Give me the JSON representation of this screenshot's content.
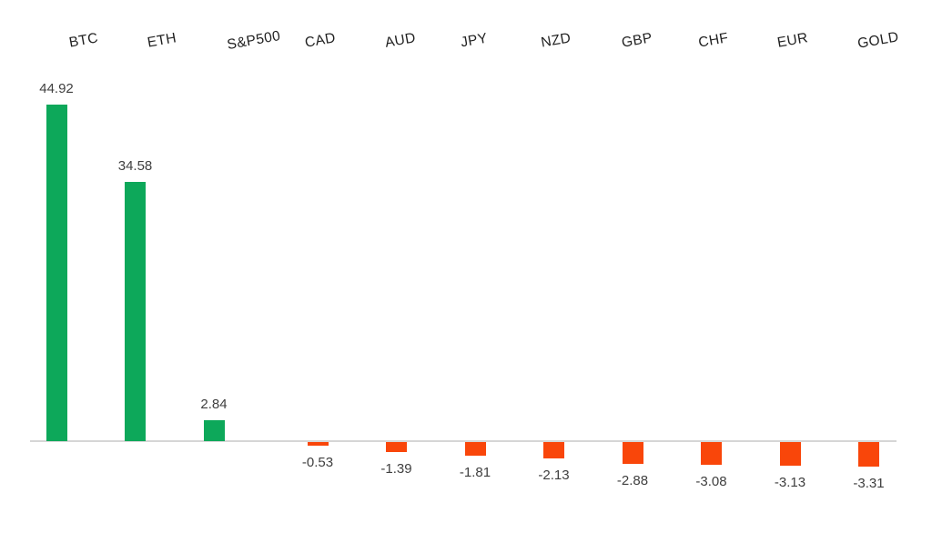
{
  "chart_data": {
    "type": "bar",
    "title": "",
    "xlabel": "",
    "ylabel": "",
    "categories": [
      "BTC",
      "ETH",
      "S&P500",
      "CAD",
      "AUD",
      "JPY",
      "NZD",
      "GBP",
      "CHF",
      "EUR",
      "GOLD"
    ],
    "values": [
      44.92,
      34.58,
      2.84,
      -0.53,
      -1.39,
      -1.81,
      -2.13,
      -2.88,
      -3.08,
      -3.13,
      -3.31
    ],
    "value_labels": [
      "44.92",
      "34.58",
      "2.84",
      "-0.53",
      "-1.39",
      "-1.81",
      "-2.13",
      "-2.88",
      "-3.08",
      "-3.13",
      "-3.31"
    ],
    "ylim": [
      -5,
      50
    ],
    "grid": false,
    "legend": null,
    "baseline_axis": true,
    "colors": {
      "positive_bar": "#0DA85A",
      "negative_bar": "#F9460A",
      "axis_line": "#D6D6D6",
      "category_label": "#1F1F1F",
      "value_label": "#3F3F3F"
    },
    "category_label_rotation_deg": -10
  }
}
